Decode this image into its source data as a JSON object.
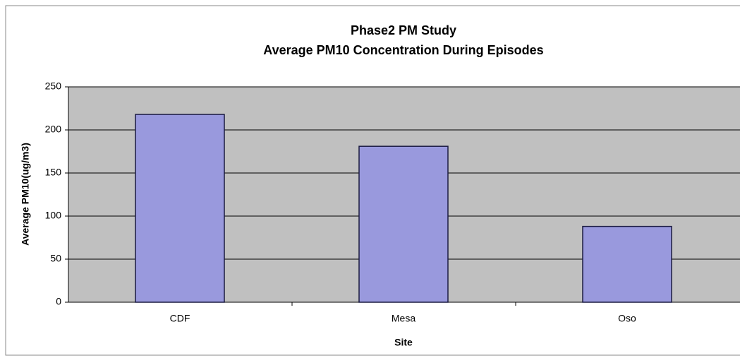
{
  "chart_data": {
    "type": "bar",
    "title": "Phase2 PM Study",
    "subtitle": "Average PM10 Concentration During Episodes",
    "x_label": "Site",
    "y_label": "Average PM10(ug/m3)",
    "categories": [
      "CDF",
      "Mesa",
      "Oso"
    ],
    "values": [
      218,
      181,
      88
    ],
    "color": "#9999dd",
    "ylim": [
      0,
      250
    ],
    "yticks": [
      0,
      50,
      100,
      150,
      200,
      250
    ],
    "grid": true
  }
}
